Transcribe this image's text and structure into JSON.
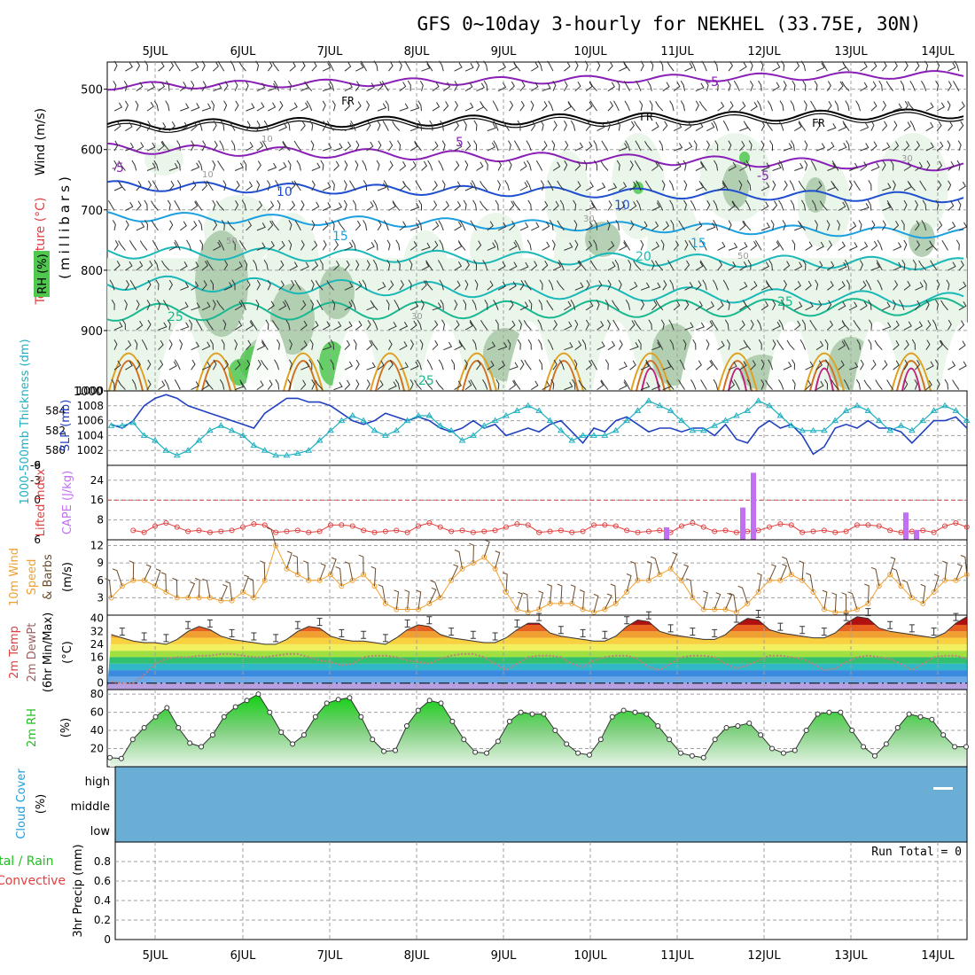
{
  "title": "GFS 0~10day 3-hourly for NEKHEL (33.75E, 30N)",
  "dates": [
    "5JUL",
    "6JUL",
    "7JUL",
    "8JUL",
    "9JUL",
    "10JUL",
    "11JUL",
    "12JUL",
    "13JUL",
    "14JUL"
  ],
  "colors": {
    "grid": "#a0a0a0",
    "freezing": "#000000",
    "iso_minus5": "#8a1fb8",
    "iso_10": "#1f4fd0",
    "iso_15": "#1aa0e0",
    "iso_20": "#1ab8b8",
    "iso_25": "#1ab890",
    "iso_warm": "#e0a020",
    "rh_low": "#e8f5e8",
    "rh_mid": "#a8c8a8",
    "rh_high": "#50c850",
    "slp": "#2040c0",
    "thickness": "#20b0c0",
    "lifted_index": "#e04040",
    "cape": "#c070f0",
    "wind_speed": "#f0a030",
    "barbs": "#6b4a2a",
    "dewpoint": "#c08080",
    "rh2m": "#20c020",
    "cloud": "#6aaed6"
  },
  "panels": {
    "upper": {
      "ylabel_wind": "Wind (m/s)",
      "ylabel_temp": "Temperature (°C)",
      "ylabel_rh": "RH (%)",
      "ylabel_pressure": "(millibars)",
      "yticks": [
        500,
        600,
        700,
        800,
        900,
        1000
      ],
      "contour_labels": {
        "fr": "FR",
        "minus5": "-5",
        "c5": "5",
        "c10": "10",
        "c15": "15",
        "c20": "20",
        "c25": "25",
        "rh10": "10",
        "rh30": "30",
        "rh50": "50"
      }
    },
    "slp": {
      "ylabel_thick": "1000-500mb Thickness (dm)",
      "ylabel_slp": "SLP (mb)",
      "left_ticks": [
        580,
        582,
        584
      ],
      "right_ticks": [
        1002,
        1004,
        1006,
        1008
      ]
    },
    "cape": {
      "ylabel_li": "Lifted Index",
      "ylabel_cape": "CAPE (J/kg)",
      "left_ticks": [
        "6",
        "0",
        "-3",
        "-6"
      ],
      "right_ticks": [
        "8",
        "16",
        "24"
      ]
    },
    "wind10": {
      "ylabel_a": "10m Wind",
      "ylabel_b": "Speed",
      "ylabel_c": "& Barbs",
      "ylabel_unit": "(m/s)",
      "ticks": [
        3,
        6,
        9,
        12
      ]
    },
    "temp2m": {
      "ylabel_a": "2m Temp",
      "ylabel_b": "2m DewPt",
      "ylabel_c": "(6hr Min/Max)",
      "ylabel_unit": "(°C)",
      "ticks": [
        0,
        8,
        16,
        24,
        32,
        40
      ]
    },
    "rh2m": {
      "ylabel": "2m RH",
      "ylabel_unit": "(%)",
      "ticks": [
        20,
        40,
        60,
        80
      ]
    },
    "cloud": {
      "ylabel": "Cloud Cover",
      "ylabel_unit": "(%)",
      "levels": [
        "high",
        "middle",
        "low"
      ]
    },
    "precip": {
      "ylabel_a": "Total / Rain",
      "ylabel_b": "Convective",
      "ylabel_c": "3hr Precip (mm)",
      "ticks": [
        "0",
        "0.2",
        "0.4",
        "0.6",
        "0.8"
      ],
      "run_total": "Run Total = 0"
    }
  },
  "chart_data": [
    {
      "type": "line",
      "name": "SLP / 1000-500mb thickness",
      "x_start": "4JUL 12Z",
      "x_step_hours": 3,
      "series": [
        {
          "name": "SLP (mb)",
          "axis": "right",
          "values": [
            1005.5,
            1005,
            1006,
            1008,
            1009,
            1009.5,
            1009,
            1008,
            1007.5,
            1007,
            1006.5,
            1006,
            1005.5,
            1005,
            1007,
            1008,
            1009,
            1009,
            1008.5,
            1008.5,
            1008,
            1007,
            1006,
            1005.5,
            1006,
            1007,
            1006.5,
            1006,
            1006.5,
            1006,
            1005,
            1004.5,
            1005,
            1006,
            1005,
            1005.5,
            1004,
            1004.5,
            1005,
            1004.5,
            1005.5,
            1006,
            1004.5,
            1003,
            1005,
            1004.5,
            1006,
            1006.5,
            1005.5,
            1004.5,
            1005,
            1005,
            1004.5,
            1005,
            1005,
            1004,
            1005.5,
            1003.5,
            1003,
            1005,
            1006,
            1005,
            1005.5,
            1004,
            1001.5,
            1002.5,
            1005,
            1005.5,
            1005,
            1006,
            1005,
            1005,
            1004.5,
            1003,
            1004.5,
            1006,
            1006,
            1006.5,
            1005,
            1005,
            1004,
            1005,
            1004.5,
            1004,
            1005,
            1005.5,
            1006,
            1005,
            1004,
            1005.5,
            1006,
            1005,
            1004.5,
            1006,
            1007,
            1008,
            1007.5,
            1007,
            1006.5,
            1006.5,
            1006.5
          ]
        },
        {
          "name": "1000-500mb Thickness (dm)",
          "axis": "left",
          "values": [
            582.5,
            582.5,
            582.8,
            581.5,
            581,
            580,
            579.5,
            580,
            581,
            582,
            582.5,
            582,
            581.5,
            580.5,
            580,
            579.5,
            579.5,
            579.7,
            580,
            581,
            582,
            583,
            583.5,
            583,
            582,
            581.5,
            582,
            583,
            583.5,
            583.5,
            582.5,
            582,
            581,
            581.5,
            582.5,
            583,
            583.5,
            584,
            584.5,
            584,
            583,
            582,
            581,
            581.5,
            581.5,
            581.5,
            582,
            583,
            584,
            585,
            584.5,
            584,
            583,
            582,
            582,
            582.5,
            583,
            583.5,
            584,
            585,
            584.5,
            583.5,
            582.5,
            582,
            582,
            582,
            583,
            584,
            584.5,
            584,
            583,
            582,
            582.5,
            582,
            583,
            584,
            584.5,
            584,
            583,
            582,
            582,
            582,
            582.5,
            583,
            583.5,
            582.5,
            581.5,
            580.5,
            580,
            580.5,
            581.5,
            582,
            583,
            582.5,
            582.5,
            582,
            581.5,
            581.5,
            582,
            582.5,
            582
          ]
        }
      ]
    },
    {
      "type": "bar",
      "name": "CAPE / Lifted Index",
      "categories": [
        "10JUL 21Z",
        "11JUL 15Z",
        "11JUL 18Z",
        "13JUL 15Z",
        "13JUL 18Z"
      ],
      "series": [
        {
          "name": "CAPE (J/kg)",
          "values": [
            5,
            13,
            27,
            11,
            4
          ]
        }
      ],
      "lifted_index_range": [
        6,
        -6
      ],
      "note_lines": [
        {
          "value": 0
        }
      ]
    },
    {
      "type": "line",
      "name": "10m Wind Speed",
      "x_start": "4JUL 12Z",
      "x_step_hours": 3,
      "series": [
        {
          "name": "10m Wind Speed (m/s)",
          "values": [
            3,
            5,
            6,
            6,
            5,
            4,
            3,
            3,
            3,
            3,
            2.5,
            2.5,
            4,
            3,
            6,
            12,
            8,
            7,
            6,
            6,
            7,
            5,
            6,
            7,
            5,
            2,
            1,
            1,
            1,
            2,
            3,
            6,
            8,
            9,
            10,
            8,
            4,
            1,
            0.5,
            1,
            2,
            2,
            2,
            1,
            0.5,
            1,
            2,
            4,
            6,
            6,
            7,
            8,
            6,
            3,
            1,
            1,
            1,
            0.5,
            2,
            4,
            6,
            6,
            7,
            6,
            4,
            1,
            0.5,
            0.5,
            1,
            2,
            5,
            7,
            5,
            3,
            2,
            4,
            6,
            6,
            7,
            6,
            4,
            2,
            1,
            1,
            2,
            3,
            6,
            7,
            5,
            3,
            2,
            2,
            3,
            5,
            6,
            8,
            9,
            8,
            6,
            3,
            2
          ]
        }
      ]
    },
    {
      "type": "area",
      "name": "2m Temperature / Dewpoint",
      "x_start": "4JUL 12Z",
      "x_step_hours": 3,
      "series": [
        {
          "name": "2m Temp (°C)",
          "values": [
            30,
            28,
            26,
            25,
            25,
            24,
            27,
            32,
            35,
            33,
            29,
            27,
            26,
            25,
            24,
            24,
            27,
            32,
            35,
            34,
            29,
            27,
            26,
            26,
            25,
            24,
            28,
            33,
            36,
            35,
            30,
            28,
            27,
            26,
            25,
            25,
            28,
            33,
            37,
            37,
            31,
            29,
            28,
            27,
            26,
            26,
            29,
            35,
            39,
            38,
            32,
            30,
            29,
            28,
            27,
            27,
            30,
            36,
            40,
            39,
            33,
            31,
            30,
            29,
            28,
            28,
            31,
            37,
            41,
            40,
            34,
            32,
            31,
            30,
            29,
            28,
            31,
            37,
            41,
            40,
            34,
            32,
            30,
            29,
            28,
            28,
            31,
            36,
            40,
            39,
            33,
            31,
            30,
            29,
            27,
            26,
            30,
            32,
            33
          ]
        },
        {
          "name": "2m DewPt (°C)",
          "values": [
            1,
            0,
            0,
            5,
            12,
            15,
            16,
            16,
            17,
            17,
            18,
            18,
            17,
            16,
            16,
            17,
            18,
            18,
            16,
            14,
            13,
            11,
            12,
            16,
            17,
            17,
            16,
            14,
            13,
            12,
            15,
            17,
            18,
            18,
            16,
            12,
            8,
            12,
            16,
            17,
            17,
            16,
            12,
            10,
            14,
            16,
            17,
            17,
            15,
            10,
            8,
            12,
            16,
            17,
            17,
            16,
            12,
            9,
            11,
            14,
            17,
            17,
            16,
            15,
            12,
            8,
            9,
            13,
            16,
            17,
            16,
            15,
            12,
            8,
            12,
            16,
            17,
            17,
            15,
            13,
            10,
            14,
            16,
            16,
            15,
            12,
            9,
            13,
            16,
            17,
            16,
            14,
            12,
            15,
            17,
            16,
            14
          ]
        }
      ]
    },
    {
      "type": "area",
      "name": "2m RH",
      "x_start": "4JUL 12Z",
      "x_step_hours": 3,
      "series": [
        {
          "name": "2m RH (%)",
          "values": [
            10,
            9,
            30,
            43,
            55,
            65,
            43,
            26,
            22,
            35,
            55,
            66,
            73,
            80,
            60,
            38,
            25,
            35,
            55,
            70,
            74,
            76,
            55,
            30,
            17,
            18,
            45,
            62,
            73,
            70,
            50,
            30,
            16,
            15,
            28,
            50,
            60,
            58,
            58,
            40,
            25,
            15,
            13,
            30,
            55,
            62,
            60,
            58,
            45,
            30,
            15,
            12,
            10,
            30,
            43,
            45,
            48,
            35,
            20,
            15,
            18,
            40,
            58,
            60,
            60,
            40,
            22,
            12,
            25,
            43,
            58,
            55,
            52,
            35,
            22,
            22
          ]
        }
      ]
    },
    {
      "type": "line",
      "name": "3hr Precip",
      "ylim": [
        0,
        1
      ],
      "series": [
        {
          "name": "Total / Rain (mm)",
          "values": [
            0
          ]
        },
        {
          "name": "Convective (mm)",
          "values": [
            0
          ]
        }
      ]
    }
  ]
}
